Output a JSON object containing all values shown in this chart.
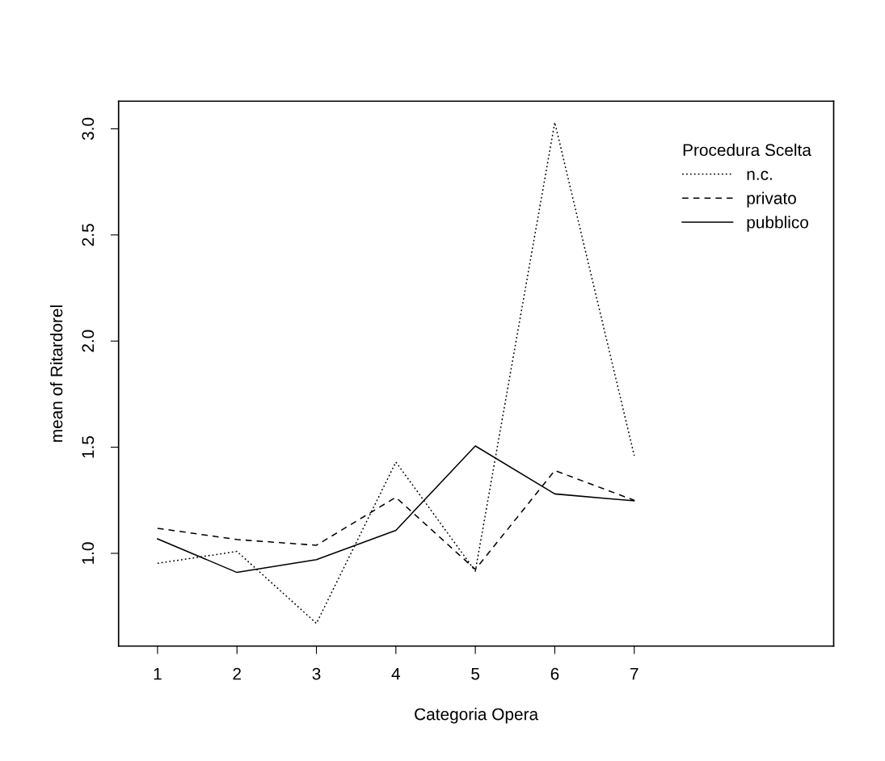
{
  "chart_data": {
    "type": "line",
    "xlabel": "Categoria Opera",
    "ylabel": "mean of Ritardorel",
    "legend_title": "Procedura Scelta",
    "legend": "top right",
    "x": [
      1,
      2,
      3,
      4,
      5,
      6,
      7
    ],
    "xlim": [
      0.51,
      9.51
    ],
    "xticks": [
      1,
      2,
      3,
      4,
      5,
      6,
      7
    ],
    "ylim": [
      0.563,
      3.13
    ],
    "yticks": [
      {
        "value": 1.0,
        "label": "1.0"
      },
      1.5,
      {
        "value": 2.0,
        "label": "2.0"
      },
      2.5,
      {
        "value": 3.0,
        "label": "3.0"
      }
    ],
    "grid": false,
    "series": [
      {
        "name": "n.c.",
        "color": "#000000",
        "line_style": "dotted",
        "values": [
          0.953,
          1.009,
          0.67,
          1.43,
          0.916,
          3.03,
          1.46
        ]
      },
      {
        "name": "privato",
        "color": "#000000",
        "line_style": "dashed",
        "values": [
          1.118,
          1.065,
          1.038,
          1.264,
          0.924,
          1.39,
          1.25
        ]
      },
      {
        "name": "pubblico",
        "color": "#000000",
        "line_style": "solid",
        "values": [
          1.068,
          0.91,
          0.97,
          1.108,
          1.506,
          1.28,
          1.247
        ]
      }
    ]
  }
}
